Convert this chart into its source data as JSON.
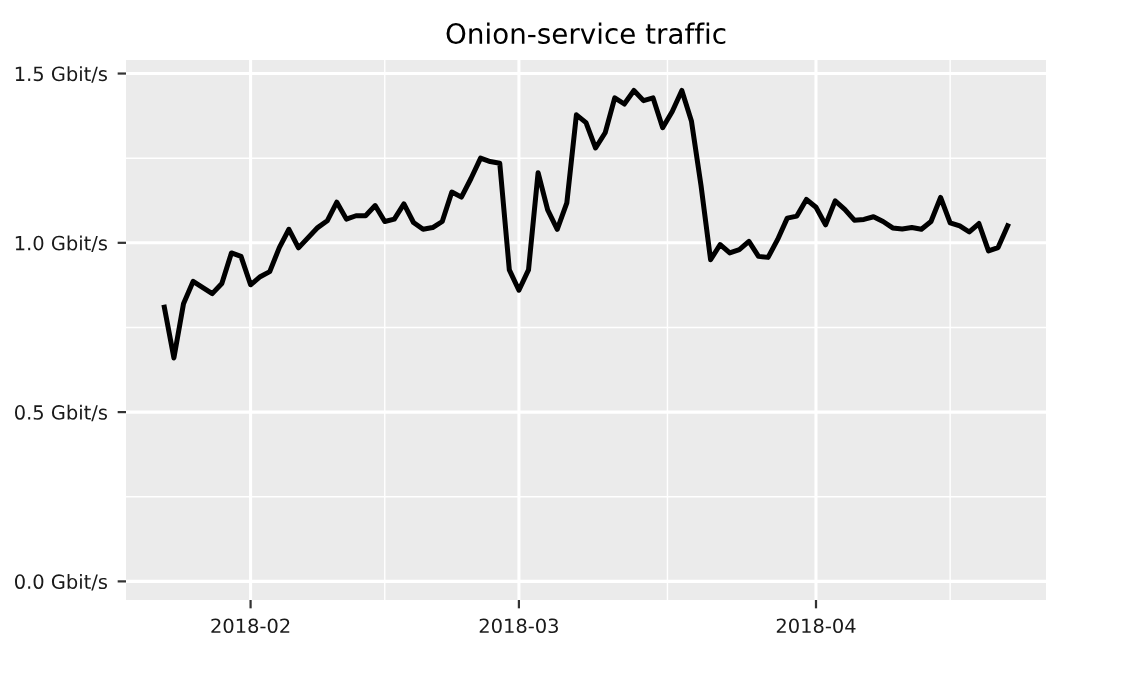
{
  "chart_data": {
    "type": "line",
    "title": "Onion-service traffic",
    "x": [
      "2018-01-23",
      "2018-01-24",
      "2018-01-25",
      "2018-01-26",
      "2018-01-28",
      "2018-01-29",
      "2018-01-30",
      "2018-01-31",
      "2018-02-01",
      "2018-02-02",
      "2018-02-03",
      "2018-02-04",
      "2018-02-05",
      "2018-02-06",
      "2018-02-08",
      "2018-02-09",
      "2018-02-10",
      "2018-02-11",
      "2018-02-12",
      "2018-02-13",
      "2018-02-14",
      "2018-02-15",
      "2018-02-16",
      "2018-02-17",
      "2018-02-18",
      "2018-02-19",
      "2018-02-20",
      "2018-02-21",
      "2018-02-22",
      "2018-02-23",
      "2018-02-24",
      "2018-02-25",
      "2018-02-26",
      "2018-02-27",
      "2018-02-28",
      "2018-03-01",
      "2018-03-02",
      "2018-03-03",
      "2018-03-04",
      "2018-03-05",
      "2018-03-06",
      "2018-03-07",
      "2018-03-08",
      "2018-03-09",
      "2018-03-10",
      "2018-03-11",
      "2018-03-12",
      "2018-03-13",
      "2018-03-14",
      "2018-03-15",
      "2018-03-16",
      "2018-03-17",
      "2018-03-18",
      "2018-03-19",
      "2018-03-20",
      "2018-03-21",
      "2018-03-22",
      "2018-03-23",
      "2018-03-24",
      "2018-03-25",
      "2018-03-26",
      "2018-03-27",
      "2018-03-28",
      "2018-03-29",
      "2018-03-30",
      "2018-03-31",
      "2018-04-01",
      "2018-04-02",
      "2018-04-03",
      "2018-04-04",
      "2018-04-05",
      "2018-04-06",
      "2018-04-07",
      "2018-04-08",
      "2018-04-09",
      "2018-04-10",
      "2018-04-11",
      "2018-04-12",
      "2018-04-13",
      "2018-04-14",
      "2018-04-15",
      "2018-04-16",
      "2018-04-17",
      "2018-04-18",
      "2018-04-19",
      "2018-04-20",
      "2018-04-21"
    ],
    "series": [
      {
        "color": "#000000",
        "values": [
          0.81,
          0.66,
          0.82,
          0.886,
          0.85,
          0.88,
          0.97,
          0.96,
          0.876,
          0.9,
          0.915,
          0.986,
          1.04,
          0.985,
          1.045,
          1.065,
          1.12,
          1.07,
          1.08,
          1.08,
          1.11,
          1.063,
          1.07,
          1.115,
          1.06,
          1.04,
          1.045,
          1.063,
          1.15,
          1.135,
          1.19,
          1.25,
          1.24,
          1.235,
          0.92,
          0.86,
          0.92,
          1.207,
          1.097,
          1.04,
          1.118,
          1.378,
          1.355,
          1.28,
          1.325,
          1.428,
          1.41,
          1.45,
          1.42,
          1.428,
          1.34,
          1.388,
          1.45,
          1.36,
          1.17,
          0.95,
          0.995,
          0.97,
          0.98,
          1.004,
          0.96,
          0.957,
          1.01,
          1.073,
          1.079,
          1.128,
          1.105,
          1.053,
          1.124,
          1.099,
          1.067,
          1.069,
          1.077,
          1.063,
          1.044,
          1.041,
          1.045,
          1.04,
          1.063,
          1.134,
          1.059,
          1.05,
          1.032,
          1.057,
          0.976,
          0.986,
          1.05
        ]
      }
    ],
    "xlim": [
      "2018-01-19",
      "2018-04-25"
    ],
    "xticks": [
      {
        "value": "2018-02-01",
        "label": "2018-02"
      },
      {
        "value": "2018-03-01",
        "label": "2018-03"
      },
      {
        "value": "2018-04-01",
        "label": "2018-04"
      }
    ],
    "ylim": [
      -0.055,
      1.54
    ],
    "yticks": [
      {
        "value": 0,
        "label": "0.0 Gbit/s"
      },
      {
        "value": 0.5,
        "label": "0.5 Gbit/s"
      },
      {
        "value": 1,
        "label": "1.0 Gbit/s"
      },
      {
        "value": 1.5,
        "label": "1.5 Gbit/s"
      }
    ],
    "grid": true,
    "marker": "none",
    "line_style": "solid"
  }
}
